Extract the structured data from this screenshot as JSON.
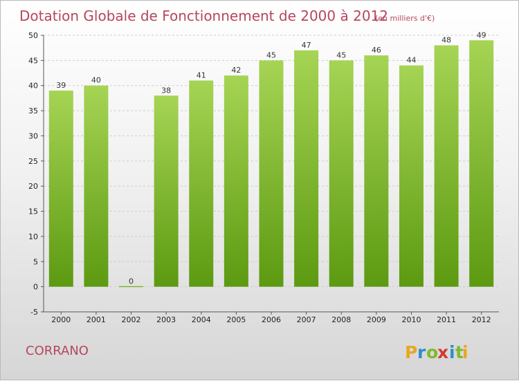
{
  "header": {
    "title": "Dotation Globale de Fonctionnement de 2000 à 2012",
    "unit": "(en milliers d'€)"
  },
  "footer": {
    "commune": "CORRANO",
    "logo": "Proxiti",
    "logo_letters": [
      "P",
      "r",
      "o",
      "x",
      "i",
      "t",
      "i"
    ],
    "logo_colors": [
      "#e7a820",
      "#2f8ec7",
      "#7fba2d",
      "#d43a2f",
      "#2f8ec7",
      "#7fba2d",
      "#e7a820"
    ]
  },
  "colors": {
    "bar_top": "#a6d454",
    "bar_bottom": "#5c9a11",
    "title": "#b5475c",
    "grid": "#cccccc",
    "axis": "#555555"
  },
  "chart_data": {
    "type": "bar",
    "title": "Dotation Globale de Fonctionnement de 2000 à 2012",
    "subtitle": "(en milliers d'€)",
    "categories": [
      "2000",
      "2001",
      "2002",
      "2003",
      "2004",
      "2005",
      "2006",
      "2007",
      "2008",
      "2009",
      "2010",
      "2011",
      "2012"
    ],
    "values": [
      39,
      40,
      0,
      38,
      41,
      42,
      45,
      47,
      45,
      46,
      44,
      48,
      49
    ],
    "data_labels": [
      "39",
      "40",
      "0",
      "38",
      "41",
      "42",
      "45",
      "47",
      "45",
      "46",
      "44",
      "48",
      "49"
    ],
    "ylim": [
      -5,
      50
    ],
    "yticks": [
      -5,
      0,
      5,
      10,
      15,
      20,
      25,
      30,
      35,
      40,
      45,
      50
    ],
    "ytick_labels": [
      "-5",
      "0",
      "5",
      "10",
      "15",
      "20",
      "25",
      "30",
      "35",
      "40",
      "45",
      "50"
    ],
    "xlabel": "",
    "ylabel": "",
    "grid": "horizontal-dashed"
  }
}
